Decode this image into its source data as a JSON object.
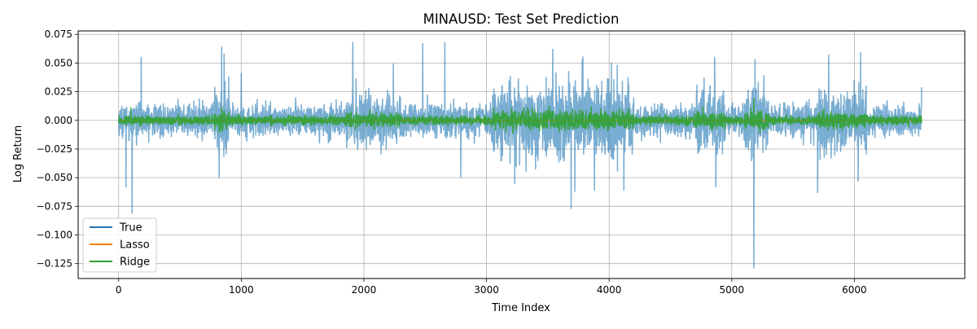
{
  "chart_data": {
    "type": "line",
    "title": "MINAUSD: Test Set Prediction",
    "xlabel": "Time Index",
    "ylabel": "Log Return",
    "xlim": [
      -330,
      6900
    ],
    "ylim": [
      -0.138,
      0.078
    ],
    "x_ticks": [
      0,
      1000,
      2000,
      3000,
      4000,
      5000,
      6000
    ],
    "x_tick_labels": [
      "0",
      "1000",
      "2000",
      "3000",
      "4000",
      "5000",
      "6000"
    ],
    "y_ticks": [
      -0.125,
      -0.1,
      -0.075,
      -0.05,
      -0.025,
      0.0,
      0.025,
      0.05,
      0.075
    ],
    "y_tick_labels": [
      "−0.125",
      "−0.100",
      "−0.075",
      "−0.050",
      "−0.025",
      "0.000",
      "0.025",
      "0.050",
      "0.075"
    ],
    "grid": true,
    "legend_position": "lower-left",
    "n_points": 6550,
    "series": [
      {
        "name": "True",
        "color": "#1f77b4",
        "typical_range": [
          -0.015,
          0.015
        ],
        "spikes": [
          {
            "x": 60,
            "y": -0.058
          },
          {
            "x": 110,
            "y": -0.081
          },
          {
            "x": 185,
            "y": 0.055
          },
          {
            "x": 820,
            "y": -0.05
          },
          {
            "x": 840,
            "y": 0.064
          },
          {
            "x": 860,
            "y": 0.058
          },
          {
            "x": 1000,
            "y": 0.041
          },
          {
            "x": 1910,
            "y": 0.068
          },
          {
            "x": 2240,
            "y": 0.049
          },
          {
            "x": 2480,
            "y": 0.067
          },
          {
            "x": 2660,
            "y": 0.068
          },
          {
            "x": 2790,
            "y": -0.05
          },
          {
            "x": 3230,
            "y": -0.055
          },
          {
            "x": 3540,
            "y": 0.062
          },
          {
            "x": 3690,
            "y": -0.077
          },
          {
            "x": 3720,
            "y": -0.062
          },
          {
            "x": 3780,
            "y": 0.053
          },
          {
            "x": 3880,
            "y": -0.061
          },
          {
            "x": 4120,
            "y": -0.061
          },
          {
            "x": 4860,
            "y": 0.055
          },
          {
            "x": 4870,
            "y": -0.058
          },
          {
            "x": 5180,
            "y": -0.129
          },
          {
            "x": 5190,
            "y": 0.053
          },
          {
            "x": 5700,
            "y": -0.063
          },
          {
            "x": 5790,
            "y": 0.057
          },
          {
            "x": 6050,
            "y": 0.059
          },
          {
            "x": 6030,
            "y": -0.053
          },
          {
            "x": 6550,
            "y": 0.029
          }
        ]
      },
      {
        "name": "Lasso",
        "color": "#ff7f0e",
        "typical_range": [
          0.0,
          0.0
        ]
      },
      {
        "name": "Ridge",
        "color": "#2ca02c",
        "typical_range": [
          -0.004,
          0.004
        ],
        "spikes": [
          {
            "x": 100,
            "y": 0.011
          },
          {
            "x": 5180,
            "y": 0.019
          },
          {
            "x": 3500,
            "y": 0.009
          },
          {
            "x": 4150,
            "y": 0.008
          },
          {
            "x": 2210,
            "y": 0.006
          }
        ]
      }
    ]
  }
}
